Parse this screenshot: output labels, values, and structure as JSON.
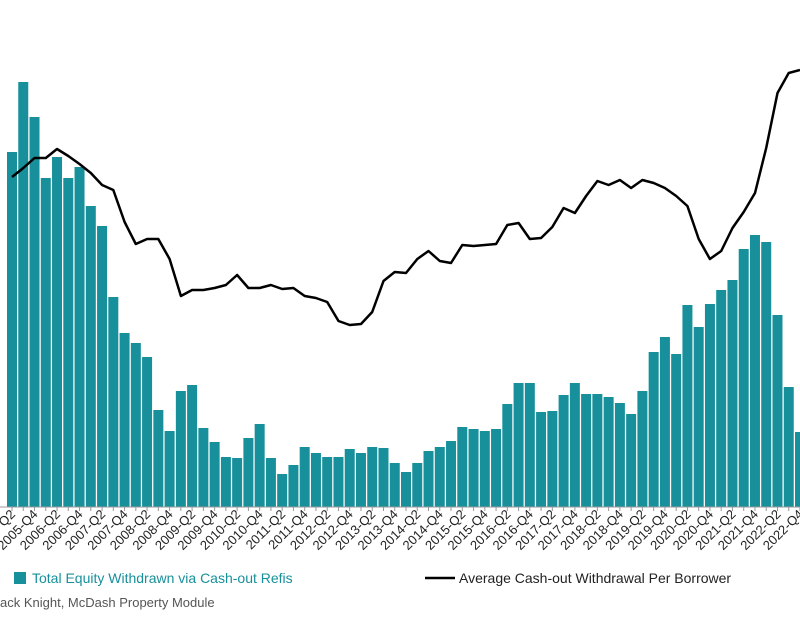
{
  "chart_data": {
    "type": "bar",
    "categories": [
      "Q2",
      null,
      "2005-Q4",
      null,
      "2006-Q2",
      null,
      "2006-Q4",
      null,
      "2007-Q2",
      null,
      "2007-Q4",
      null,
      "2008-Q2",
      null,
      "2008-Q4",
      null,
      "2009-Q2",
      null,
      "2009-Q4",
      null,
      "2010-Q2",
      null,
      "2010-Q4",
      null,
      "2011-Q2",
      null,
      "2011-Q4",
      null,
      "2012-Q2",
      null,
      "2012-Q4",
      null,
      "2013-Q2",
      null,
      "2013-Q4",
      null,
      "2014-Q2",
      null,
      "2014-Q4",
      null,
      "2015-Q2",
      null,
      "2015-Q4",
      null,
      "2016-Q2",
      null,
      "2016-Q4",
      null,
      "2017-Q2",
      null,
      "2017-Q4",
      null,
      "2018-Q2",
      null,
      "2018-Q4",
      null,
      "2019-Q2",
      null,
      "2019-Q4",
      null,
      "2020-Q2",
      null,
      "2020-Q4",
      null,
      "2021-Q2",
      null,
      "2021-Q4",
      null,
      "2022-Q2",
      null,
      "2022-Q4"
    ],
    "series": [
      {
        "name": "Total Equity Withdrawn via Cash-out Refis",
        "type": "bar",
        "color": "#17909b",
        "values": [
          355,
          425,
          390,
          329,
          350,
          329,
          340,
          301,
          281,
          210,
          174,
          164,
          150,
          97,
          76,
          116,
          122,
          79,
          65,
          50,
          49,
          69,
          83,
          49,
          33,
          42,
          60,
          54,
          50,
          50,
          58,
          54,
          60,
          59,
          44,
          35,
          44,
          56,
          60,
          66,
          80,
          78,
          76,
          78,
          103,
          124,
          124,
          95,
          96,
          112,
          124,
          113,
          113,
          110,
          104,
          93,
          116,
          155,
          170,
          153,
          202,
          180,
          203,
          217,
          227,
          258,
          272,
          265,
          192,
          120,
          75
        ]
      },
      {
        "name": "Average Cash-out Withdrawal Per Borrower",
        "type": "line",
        "color": "#000000",
        "values": [
          330,
          339,
          349,
          349,
          358,
          351,
          343,
          334,
          322,
          317,
          285,
          263,
          268,
          268,
          248,
          211,
          217,
          217,
          219,
          222,
          232,
          219,
          219,
          222,
          218,
          219,
          211,
          209,
          205,
          186,
          182,
          183,
          195,
          226,
          235,
          234,
          248,
          256,
          246,
          244,
          262,
          261,
          262,
          263,
          282,
          284,
          268,
          269,
          280,
          299,
          294,
          311,
          326,
          322,
          327,
          319,
          327,
          324,
          319,
          311,
          301,
          268,
          248,
          256,
          279,
          295,
          314,
          359,
          414,
          434,
          437
        ]
      }
    ],
    "ylim": [
      0,
      425
    ],
    "source": "ack Knight, McDash Property Module"
  }
}
